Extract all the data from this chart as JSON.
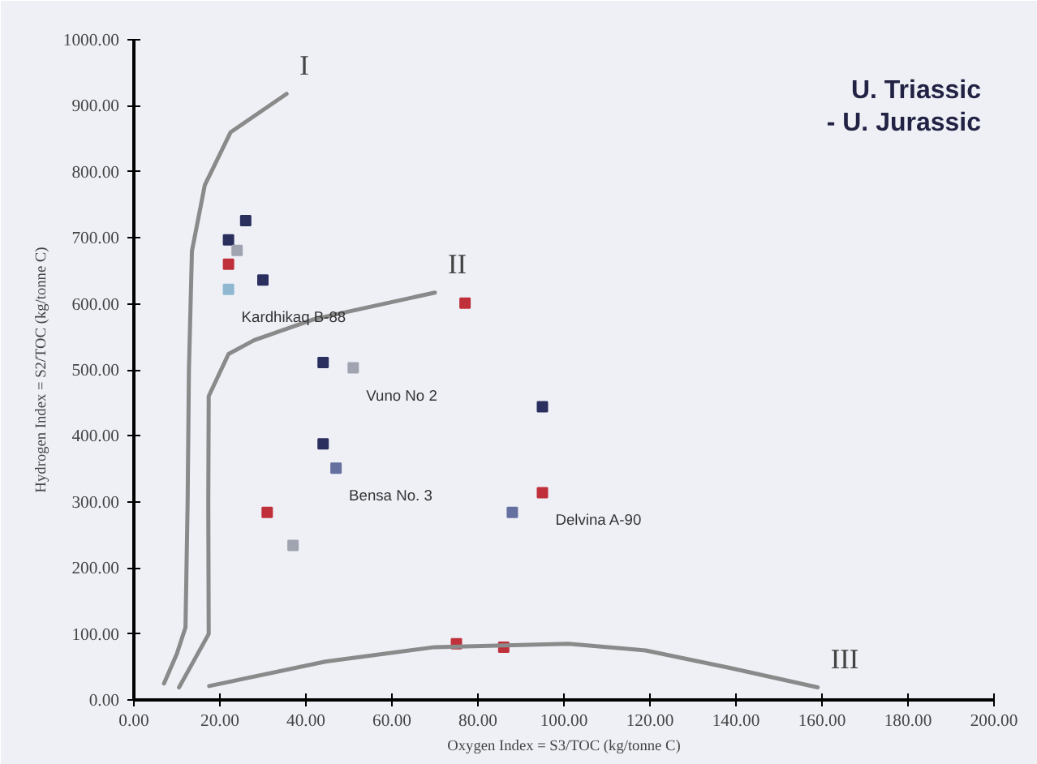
{
  "chart_data": {
    "type": "scatter",
    "xlabel": "Oxygen Index = S3/TOC (kg/tonne C)",
    "ylabel": "Hydrogen Index = S2/TOC (kg/tonne C)",
    "xlim": [
      0,
      200
    ],
    "ylim": [
      0,
      1000
    ],
    "xticks": [
      {
        "value": 0,
        "label": "0.00"
      },
      {
        "value": 20,
        "label": "20.00"
      },
      {
        "value": 40,
        "label": "40.00"
      },
      {
        "value": 60,
        "label": "60.00"
      },
      {
        "value": 80,
        "label": "80.00"
      },
      {
        "value": 100,
        "label": "100.00"
      },
      {
        "value": 120,
        "label": "120.00"
      },
      {
        "value": 140,
        "label": "140.00"
      },
      {
        "value": 160,
        "label": "160.00"
      },
      {
        "value": 180,
        "label": "180.00"
      },
      {
        "value": 200,
        "label": "200.00"
      }
    ],
    "yticks": [
      {
        "value": 0,
        "label": "0.00"
      },
      {
        "value": 100,
        "label": "100.00"
      },
      {
        "value": 200,
        "label": "200.00"
      },
      {
        "value": 300,
        "label": "300.00"
      },
      {
        "value": 400,
        "label": "400.00"
      },
      {
        "value": 500,
        "label": "500.00"
      },
      {
        "value": 600,
        "label": "600.00"
      },
      {
        "value": 700,
        "label": "700.00"
      },
      {
        "value": 800,
        "label": "800.00"
      },
      {
        "value": 900,
        "label": "900.00"
      },
      {
        "value": 1000,
        "label": "1000.00"
      }
    ],
    "grid": false,
    "series": [
      {
        "marker": "square",
        "x": [
          22,
          26,
          24,
          22,
          22,
          30,
          77,
          44,
          51,
          44,
          47,
          31,
          37,
          95,
          95,
          88,
          75,
          86
        ],
        "values": [
          697,
          726,
          681,
          660,
          622,
          636,
          601,
          511,
          503,
          388,
          351,
          284,
          234,
          444,
          314,
          284,
          85,
          80
        ],
        "colors": [
          "#2b2f5e",
          "#2b2f5e",
          "#a0a4b0",
          "#c0303a",
          "#8fb8d0",
          "#2b2f5e",
          "#c0303a",
          "#2b2f5e",
          "#a0a4b0",
          "#2b2f5e",
          "#6670a0",
          "#c0303a",
          "#a0a4b0",
          "#2b2f5e",
          "#c0303a",
          "#6670a0",
          "#c0303a",
          "#c0303a"
        ]
      },
      {
        "type": "line",
        "marker": "none",
        "name": "I",
        "color": "#8a8a8a",
        "x": [
          7,
          10,
          12,
          12.5,
          12.8,
          13.5,
          16.5,
          22.5,
          35.5
        ],
        "values": [
          25,
          70,
          110,
          300,
          500,
          680,
          780,
          860,
          918
        ]
      },
      {
        "type": "line",
        "marker": "none",
        "name": "II",
        "color": "#8a8a8a",
        "x": [
          10.5,
          14,
          17.4,
          17.3,
          17.4,
          22,
          28,
          42,
          70
        ],
        "values": [
          19,
          60,
          100,
          300,
          460,
          524,
          545,
          577,
          617
        ]
      },
      {
        "type": "line",
        "marker": "none",
        "name": "III",
        "color": "#8a8a8a",
        "x": [
          17.5,
          44.5,
          70,
          101,
          119,
          139,
          159
        ],
        "values": [
          21,
          58,
          80,
          85,
          75,
          48,
          19
        ]
      }
    ],
    "annotations": [
      "U. Triassic",
      "- U. Jurassic",
      {
        "text": "Kardhikaq B-88",
        "x": 22,
        "y": 622
      },
      {
        "text": "Vuno No 2",
        "x": 51,
        "y": 503
      },
      {
        "text": "Bensa No. 3",
        "x": 47,
        "y": 351
      },
      {
        "text": "Delvina A-90",
        "x": 95,
        "y": 314
      }
    ]
  }
}
